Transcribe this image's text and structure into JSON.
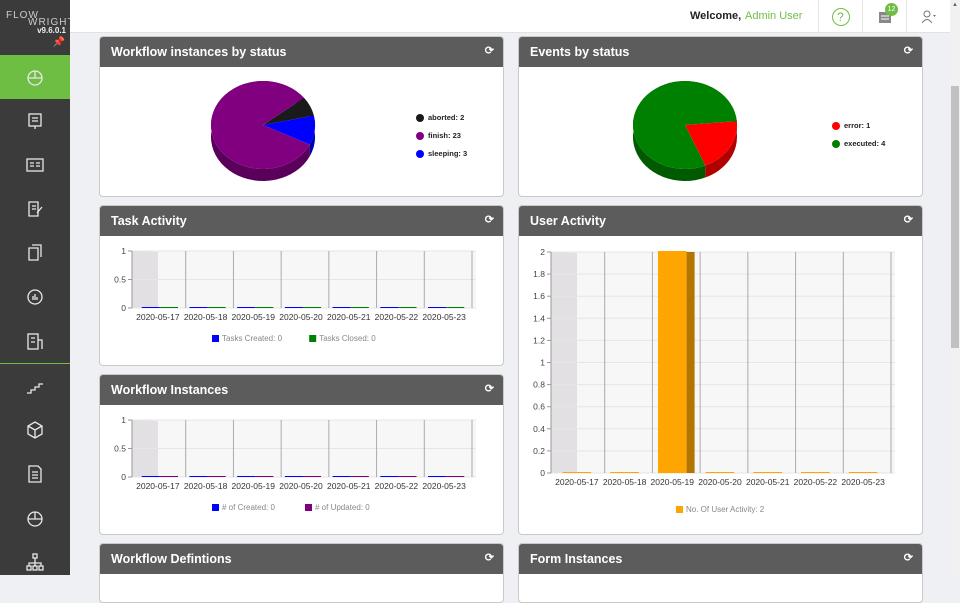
{
  "brand": {
    "line1": "FLOW",
    "line2": "WRIGHT",
    "version": "v9.6.0.1"
  },
  "sidebar": {
    "items": [
      {
        "icon": "dashboard-icon",
        "active": true
      },
      {
        "icon": "workflow-designer-icon"
      },
      {
        "icon": "forms-icon"
      },
      {
        "icon": "edit-document-icon"
      },
      {
        "icon": "pages-icon"
      },
      {
        "icon": "reports-icon"
      },
      {
        "icon": "building-icon"
      },
      {
        "icon": "steps-icon"
      },
      {
        "icon": "package-icon"
      },
      {
        "icon": "document-icon"
      },
      {
        "icon": "engine-icon"
      },
      {
        "icon": "network-icon"
      }
    ]
  },
  "topbar": {
    "welcome": "Welcome,",
    "user": "Admin User",
    "notifications": "12"
  },
  "colors": {
    "accent": "#6fbe44",
    "header": "#5c5c5c"
  },
  "panels": {
    "wf_status": {
      "title": "Workflow instances by status"
    },
    "events": {
      "title": "Events by status"
    },
    "task": {
      "title": "Task Activity"
    },
    "user": {
      "title": "User Activity"
    },
    "wf_inst": {
      "title": "Workflow Instances"
    },
    "wf_def": {
      "title": "Workflow Defintions"
    },
    "form": {
      "title": "Form Instances"
    }
  },
  "chart_data": [
    {
      "type": "pie",
      "slices": [
        {
          "label": "aborted: 2",
          "value": 2,
          "color": "#1a1a1a"
        },
        {
          "label": "finish: 23",
          "value": 23,
          "color": "#800080"
        },
        {
          "label": "sleeping: 3",
          "value": 3,
          "color": "#0000ff"
        }
      ]
    },
    {
      "type": "pie",
      "slices": [
        {
          "label": "error: 1",
          "value": 1,
          "color": "#ff0000"
        },
        {
          "label": "executed: 4",
          "value": 4,
          "color": "#008000"
        }
      ]
    },
    {
      "type": "bar",
      "categories": [
        "2020-05-17",
        "2020-05-18",
        "2020-05-19",
        "2020-05-20",
        "2020-05-21",
        "2020-05-22",
        "2020-05-23"
      ],
      "ylim": [
        0,
        1
      ],
      "yticks": [
        "0",
        "0.5",
        "1"
      ],
      "series": [
        {
          "name": "Tasks Created: 0",
          "color": "#0000ff",
          "values": [
            0,
            0,
            0,
            0,
            0,
            0,
            0
          ]
        },
        {
          "name": "Tasks Closed: 0",
          "color": "#008000",
          "values": [
            0,
            0,
            0,
            0,
            0,
            0,
            0
          ]
        }
      ]
    },
    {
      "type": "bar",
      "categories": [
        "2020-05-17",
        "2020-05-18",
        "2020-05-19",
        "2020-05-20",
        "2020-05-21",
        "2020-05-22",
        "2020-05-23"
      ],
      "ylim": [
        0,
        2
      ],
      "yticks": [
        "0",
        "0.2",
        "0.4",
        "0.6",
        "0.8",
        "1",
        "1.2",
        "1.4",
        "1.6",
        "1.8",
        "2"
      ],
      "series": [
        {
          "name": "No. Of User Activity: 2",
          "color": "#ffa500",
          "values": [
            0,
            0,
            2,
            0,
            0,
            0,
            0
          ]
        }
      ]
    },
    {
      "type": "bar",
      "categories": [
        "2020-05-17",
        "2020-05-18",
        "2020-05-19",
        "2020-05-20",
        "2020-05-21",
        "2020-05-22",
        "2020-05-23"
      ],
      "ylim": [
        0,
        1
      ],
      "yticks": [
        "0",
        "0.5",
        "1"
      ],
      "series": [
        {
          "name": "# of Created: 0",
          "color": "#0000ff",
          "values": [
            0,
            0,
            0,
            0,
            0,
            0,
            0
          ]
        },
        {
          "name": "# of Updated: 0",
          "color": "#800080",
          "values": [
            0,
            0,
            0,
            0,
            0,
            0,
            0
          ]
        }
      ]
    }
  ]
}
